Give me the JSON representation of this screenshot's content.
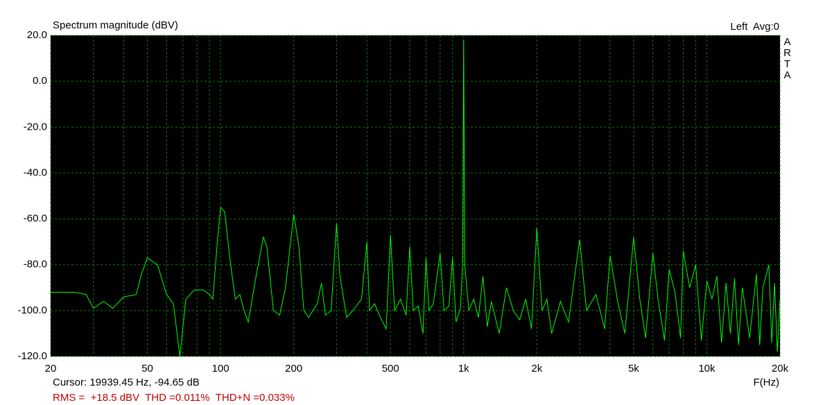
{
  "chart_data": {
    "type": "line",
    "title": "Spectrum magnitude (dBV)",
    "channel_label": "Left  Avg:0",
    "side_label": "ARTA",
    "cursor_readout": "Cursor: 19939.45 Hz, -94.65 dB",
    "xlabel": "F(Hz)",
    "stats": "RMS =  +18.5 dBV  THD =0.011%  THD+N =0.033%",
    "xscale": "log",
    "grid": true,
    "xlim": [
      20,
      20000
    ],
    "ylim": [
      -120,
      20
    ],
    "xticks": [
      20,
      50,
      100,
      200,
      500,
      {
        "value": 1000,
        "label": "1k"
      },
      {
        "value": 2000,
        "label": "2k"
      },
      {
        "value": 5000,
        "label": "5k"
      },
      {
        "value": 10000,
        "label": "10k"
      },
      {
        "value": 20000,
        "label": "20k"
      }
    ],
    "xminorticks": [
      30,
      40,
      60,
      70,
      80,
      90,
      300,
      400,
      600,
      700,
      800,
      900,
      3000,
      4000,
      6000,
      7000,
      8000,
      9000
    ],
    "yticks": [
      {
        "value": -120,
        "label": "-120.0"
      },
      {
        "value": -100,
        "label": "-100.0"
      },
      {
        "value": -80,
        "label": "-80.0"
      },
      {
        "value": -60,
        "label": "-60.0"
      },
      {
        "value": -40,
        "label": "-40.0"
      },
      {
        "value": -20,
        "label": "-20.0"
      },
      {
        "value": 0,
        "label": "0.0"
      },
      {
        "value": 20,
        "label": "20.0"
      }
    ],
    "series": [
      {
        "color": "#00ff00",
        "x": [
          20,
          25,
          28,
          30,
          33,
          36,
          40,
          45,
          47,
          50,
          55,
          60,
          64,
          68,
          72,
          78,
          85,
          90,
          93,
          97,
          100,
          104,
          110,
          115,
          120,
          125,
          130,
          140,
          150,
          155,
          165,
          175,
          185,
          200,
          210,
          220,
          230,
          250,
          260,
          270,
          285,
          300,
          310,
          330,
          350,
          380,
          400,
          410,
          430,
          450,
          480,
          500,
          520,
          550,
          580,
          600,
          620,
          650,
          680,
          700,
          720,
          750,
          800,
          830,
          870,
          900,
          930,
          970,
          990,
          1000,
          1010,
          1050,
          1100,
          1150,
          1200,
          1250,
          1300,
          1400,
          1500,
          1600,
          1700,
          1800,
          1900,
          2000,
          2100,
          2200,
          2300,
          2500,
          2700,
          3000,
          3200,
          3500,
          3800,
          4000,
          4300,
          4600,
          5000,
          5300,
          5600,
          6000,
          6300,
          6700,
          7000,
          7400,
          7800,
          8000,
          8500,
          9000,
          9500,
          10000,
          10500,
          11000,
          11500,
          12000,
          12500,
          13000,
          13500,
          14000,
          15000,
          16000,
          16500,
          17000,
          18000,
          18500,
          19000,
          19500,
          20000
        ],
        "values": [
          -92,
          -92,
          -93,
          -99,
          -96,
          -99,
          -94,
          -93,
          -85,
          -77,
          -80,
          -93,
          -97,
          -120,
          -95,
          -91,
          -91,
          -93,
          -95,
          -70,
          -55,
          -57,
          -80,
          -95,
          -93,
          -100,
          -105,
          -85,
          -68,
          -72,
          -100,
          -102,
          -90,
          -58,
          -72,
          -100,
          -103,
          -97,
          -88,
          -102,
          -100,
          -62,
          -85,
          -103,
          -100,
          -95,
          -70,
          -100,
          -97,
          -102,
          -108,
          -67,
          -100,
          -95,
          -102,
          -72,
          -100,
          -98,
          -110,
          -77,
          -100,
          -97,
          -75,
          -100,
          -98,
          -77,
          -105,
          -99,
          -80,
          18,
          -80,
          -100,
          -95,
          -103,
          -85,
          -107,
          -96,
          -110,
          -90,
          -100,
          -104,
          -95,
          -108,
          -64,
          -100,
          -95,
          -110,
          -96,
          -105,
          -69,
          -100,
          -93,
          -108,
          -76,
          -96,
          -110,
          -68,
          -95,
          -112,
          -75,
          -95,
          -113,
          -82,
          -92,
          -112,
          -74,
          -90,
          -80,
          -113,
          -87,
          -95,
          -85,
          -114,
          -88,
          -110,
          -86,
          -115,
          -90,
          -112,
          -84,
          -115,
          -90,
          -80,
          -114,
          -88,
          -118,
          -95
        ]
      }
    ]
  }
}
